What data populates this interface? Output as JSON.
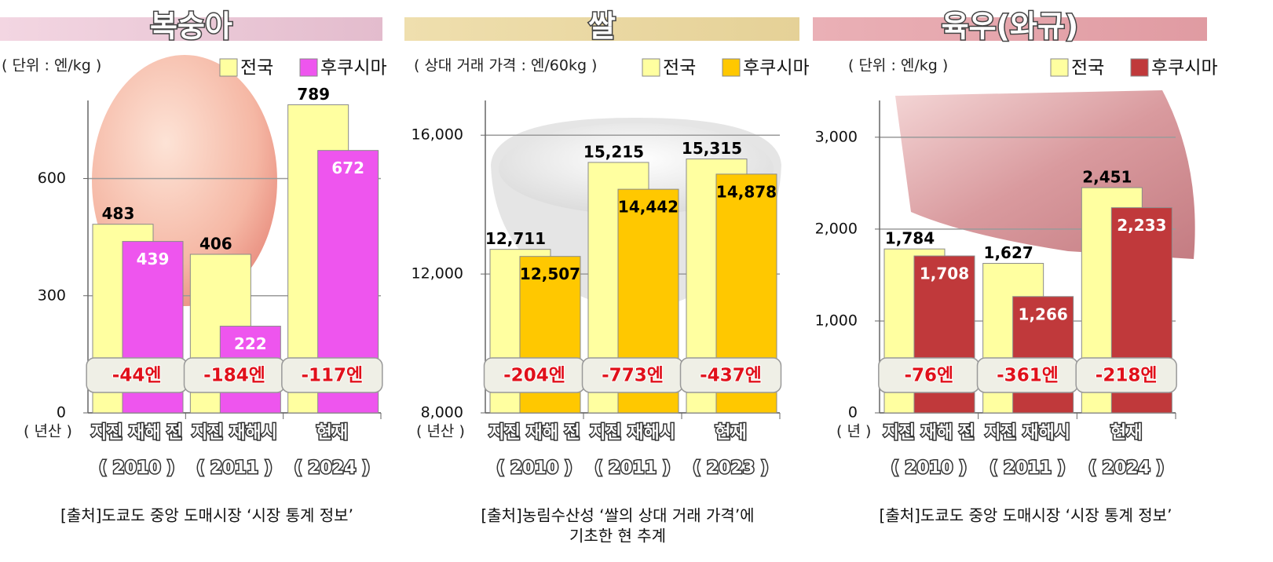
{
  "chart_data": [
    {
      "type": "bar",
      "title": "복숭아",
      "unit_label": "( 단위 : 엔/kg )",
      "x_unit_label": "( 년산 )",
      "categories": [
        "지진 재해 전",
        "지진 재해시",
        "현재"
      ],
      "category_years": [
        "( 2010 )",
        "( 2011 )",
        "( 2024 )"
      ],
      "series": [
        {
          "name": "전국",
          "color": "#ffffa0",
          "label_color": "#000000",
          "values": [
            483,
            406,
            789
          ]
        },
        {
          "name": "후쿠시마",
          "color": "#ee55ee",
          "label_color": "#ffffff",
          "values": [
            439,
            222,
            672
          ]
        }
      ],
      "annotations": [
        "-44엔",
        "-184엔",
        "-117엔"
      ],
      "ylim": [
        0,
        800
      ],
      "yticks": [
        0,
        300,
        600
      ],
      "grid": true,
      "source": [
        "[출처]도쿄도 중앙 도매시장 ‘시장 통계 정보’"
      ]
    },
    {
      "type": "bar",
      "title": "쌀",
      "unit_label": "( 상대 거래 가격 : 엔/60kg )",
      "x_unit_label": "( 년산 )",
      "categories": [
        "지진 재해 전",
        "지진 재해시",
        "현재"
      ],
      "category_years": [
        "( 2010 )",
        "( 2011 )",
        "( 2023 )"
      ],
      "series": [
        {
          "name": "전국",
          "color": "#ffffa0",
          "label_color": "#000000",
          "values": [
            12711,
            15215,
            15315
          ],
          "value_labels": [
            "12,711",
            "15,215",
            "15,315"
          ]
        },
        {
          "name": "후쿠시마",
          "color": "#ffc800",
          "label_color": "#000000",
          "values": [
            12507,
            14442,
            14878
          ],
          "value_labels": [
            "12,507",
            "14,442",
            "14,878"
          ]
        }
      ],
      "annotations": [
        "-204엔",
        "-773엔",
        "-437엔"
      ],
      "ylim": [
        8000,
        17000
      ],
      "yticks": [
        {
          "value": 8000,
          "label": "8,000"
        },
        {
          "value": 12000,
          "label": "12,000"
        },
        {
          "value": 16000,
          "label": "16,000"
        }
      ],
      "grid": true,
      "source": [
        "[출처]농림수산성 ‘쌀의 상대 거래 가격’에",
        "기초한 현 추계"
      ]
    },
    {
      "type": "bar",
      "title": "육우(와규)",
      "unit_label": "( 단위 : 엔/kg )",
      "x_unit_label": "( 년 )",
      "categories": [
        "지진 재해 전",
        "지진 재해시",
        "현재"
      ],
      "category_years": [
        "( 2010 )",
        "( 2011 )",
        "( 2024 )"
      ],
      "series": [
        {
          "name": "전국",
          "color": "#ffffa0",
          "label_color": "#000000",
          "values": [
            1784,
            1627,
            2451
          ],
          "value_labels": [
            "1,784",
            "1,627",
            "2,451"
          ]
        },
        {
          "name": "후쿠시마",
          "color": "#c0393b",
          "label_color": "#ffffff",
          "values": [
            1708,
            1266,
            2233
          ],
          "value_labels": [
            "1,708",
            "1,266",
            "2,233"
          ]
        }
      ],
      "annotations": [
        "-76엔",
        "-361엔",
        "-218엔"
      ],
      "ylim": [
        0,
        3400
      ],
      "yticks": [
        0,
        {
          "value": 1000,
          "label": "1,000"
        },
        {
          "value": 2000,
          "label": "2,000"
        },
        {
          "value": 3000,
          "label": "3,000"
        }
      ],
      "grid": true,
      "source": [
        "[출처]도쿄도 중앙 도매시장 ‘시장 통계 정보’"
      ]
    }
  ]
}
